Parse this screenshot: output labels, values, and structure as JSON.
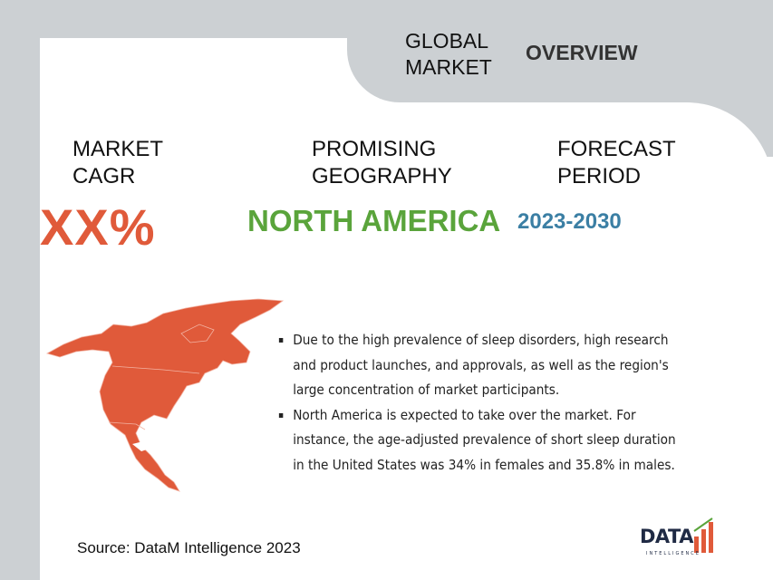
{
  "header": {
    "line1": "GLOBAL",
    "line2": "MARKET",
    "overview": "OVERVIEW"
  },
  "stats": {
    "cagr_label_1": "MARKET",
    "cagr_label_2": "CAGR",
    "cagr_value": "XX%",
    "geo_label_1": "PROMISING",
    "geo_label_2": "GEOGRAPHY",
    "geo_value": "NORTH AMERICA",
    "period_label_1": "FORECAST",
    "period_label_2": "PERIOD",
    "period_value": "2023-2030"
  },
  "bullets": [
    "Due to the high prevalence of sleep disorders, high research and product launches, and approvals, as well as the region's large concentration of market participants.",
    "North America is expected to take over the market. For instance, the age-adjusted prevalence of short sleep duration in the United States was 34% in females and 35.8% in males."
  ],
  "source": "Source: DataM Intelligence 2023",
  "logo": {
    "main": "DATA",
    "sub": "INTELLIGENCE"
  },
  "colors": {
    "accent_red": "#e05a3a",
    "accent_green": "#5aa43b",
    "accent_blue": "#3b7fa4",
    "background_gray": "#ccd0d3"
  }
}
